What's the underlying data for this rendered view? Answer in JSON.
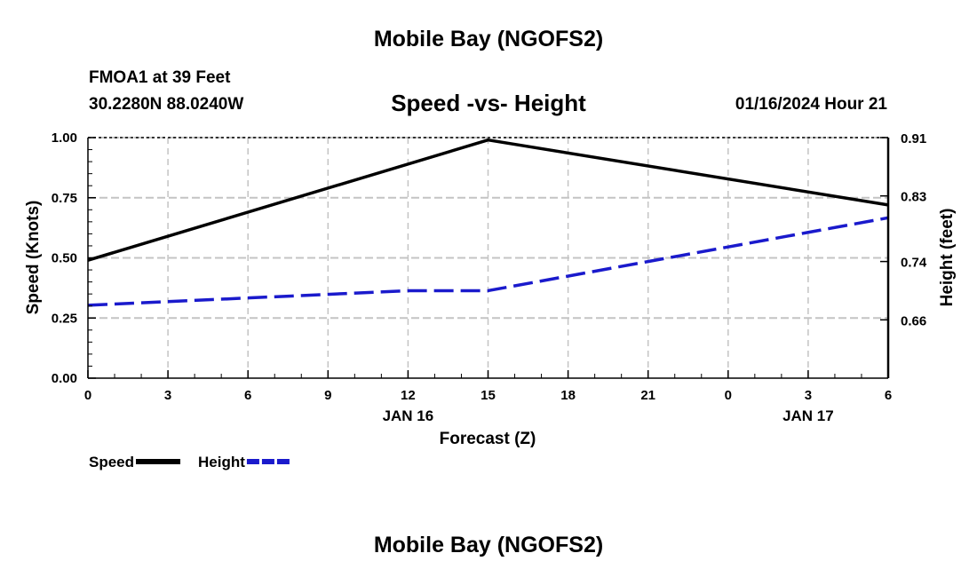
{
  "header": {
    "title": "Mobile Bay (NGOFS2)",
    "station": "FMOA1 at 39 Feet",
    "coords": "30.2280N  88.0240W",
    "subtitle": "Speed -vs- Height",
    "timestamp": "01/16/2024 Hour 21"
  },
  "footer": {
    "title": "Mobile Bay (NGOFS2)"
  },
  "chart_data": {
    "type": "line",
    "title": "Speed -vs- Height",
    "xlabel": "Forecast (Z)",
    "ylabel": "Speed (Knots)",
    "y2label": "Height (feet)",
    "x_ticks": [
      "0",
      "3",
      "6",
      "9",
      "12",
      "15",
      "18",
      "21",
      "0",
      "3",
      "6"
    ],
    "x_date_labels": [
      {
        "tick_index": 4,
        "label": "JAN 16"
      },
      {
        "tick_index": 9,
        "label": "JAN 17"
      }
    ],
    "y_ticks": [
      "0.00",
      "0.25",
      "0.50",
      "0.75",
      "1.00"
    ],
    "ylim": [
      0,
      1
    ],
    "y2_ticks": [
      "0.66",
      "0.74",
      "0.83",
      "0.91"
    ],
    "y2lim": [
      0.58,
      0.91
    ],
    "grid": true,
    "legend": "bottom-left",
    "series": [
      {
        "name": "Speed",
        "axis": "left",
        "color": "#000000",
        "dash": "solid",
        "points": [
          {
            "tick_index": 0,
            "value": 0.49
          },
          {
            "tick_index": 5,
            "value": 0.99
          },
          {
            "tick_index": 10,
            "value": 0.72
          }
        ]
      },
      {
        "name": "Height",
        "axis": "right",
        "color": "#1a1acc",
        "dash": "dashed",
        "points": [
          {
            "tick_index": 0,
            "value": 0.68
          },
          {
            "tick_index": 2,
            "value": 0.69
          },
          {
            "tick_index": 4,
            "value": 0.7
          },
          {
            "tick_index": 5,
            "value": 0.7
          },
          {
            "tick_index": 7,
            "value": 0.74
          },
          {
            "tick_index": 8,
            "value": 0.76
          },
          {
            "tick_index": 9,
            "value": 0.78
          },
          {
            "tick_index": 10,
            "value": 0.8
          }
        ]
      }
    ]
  }
}
